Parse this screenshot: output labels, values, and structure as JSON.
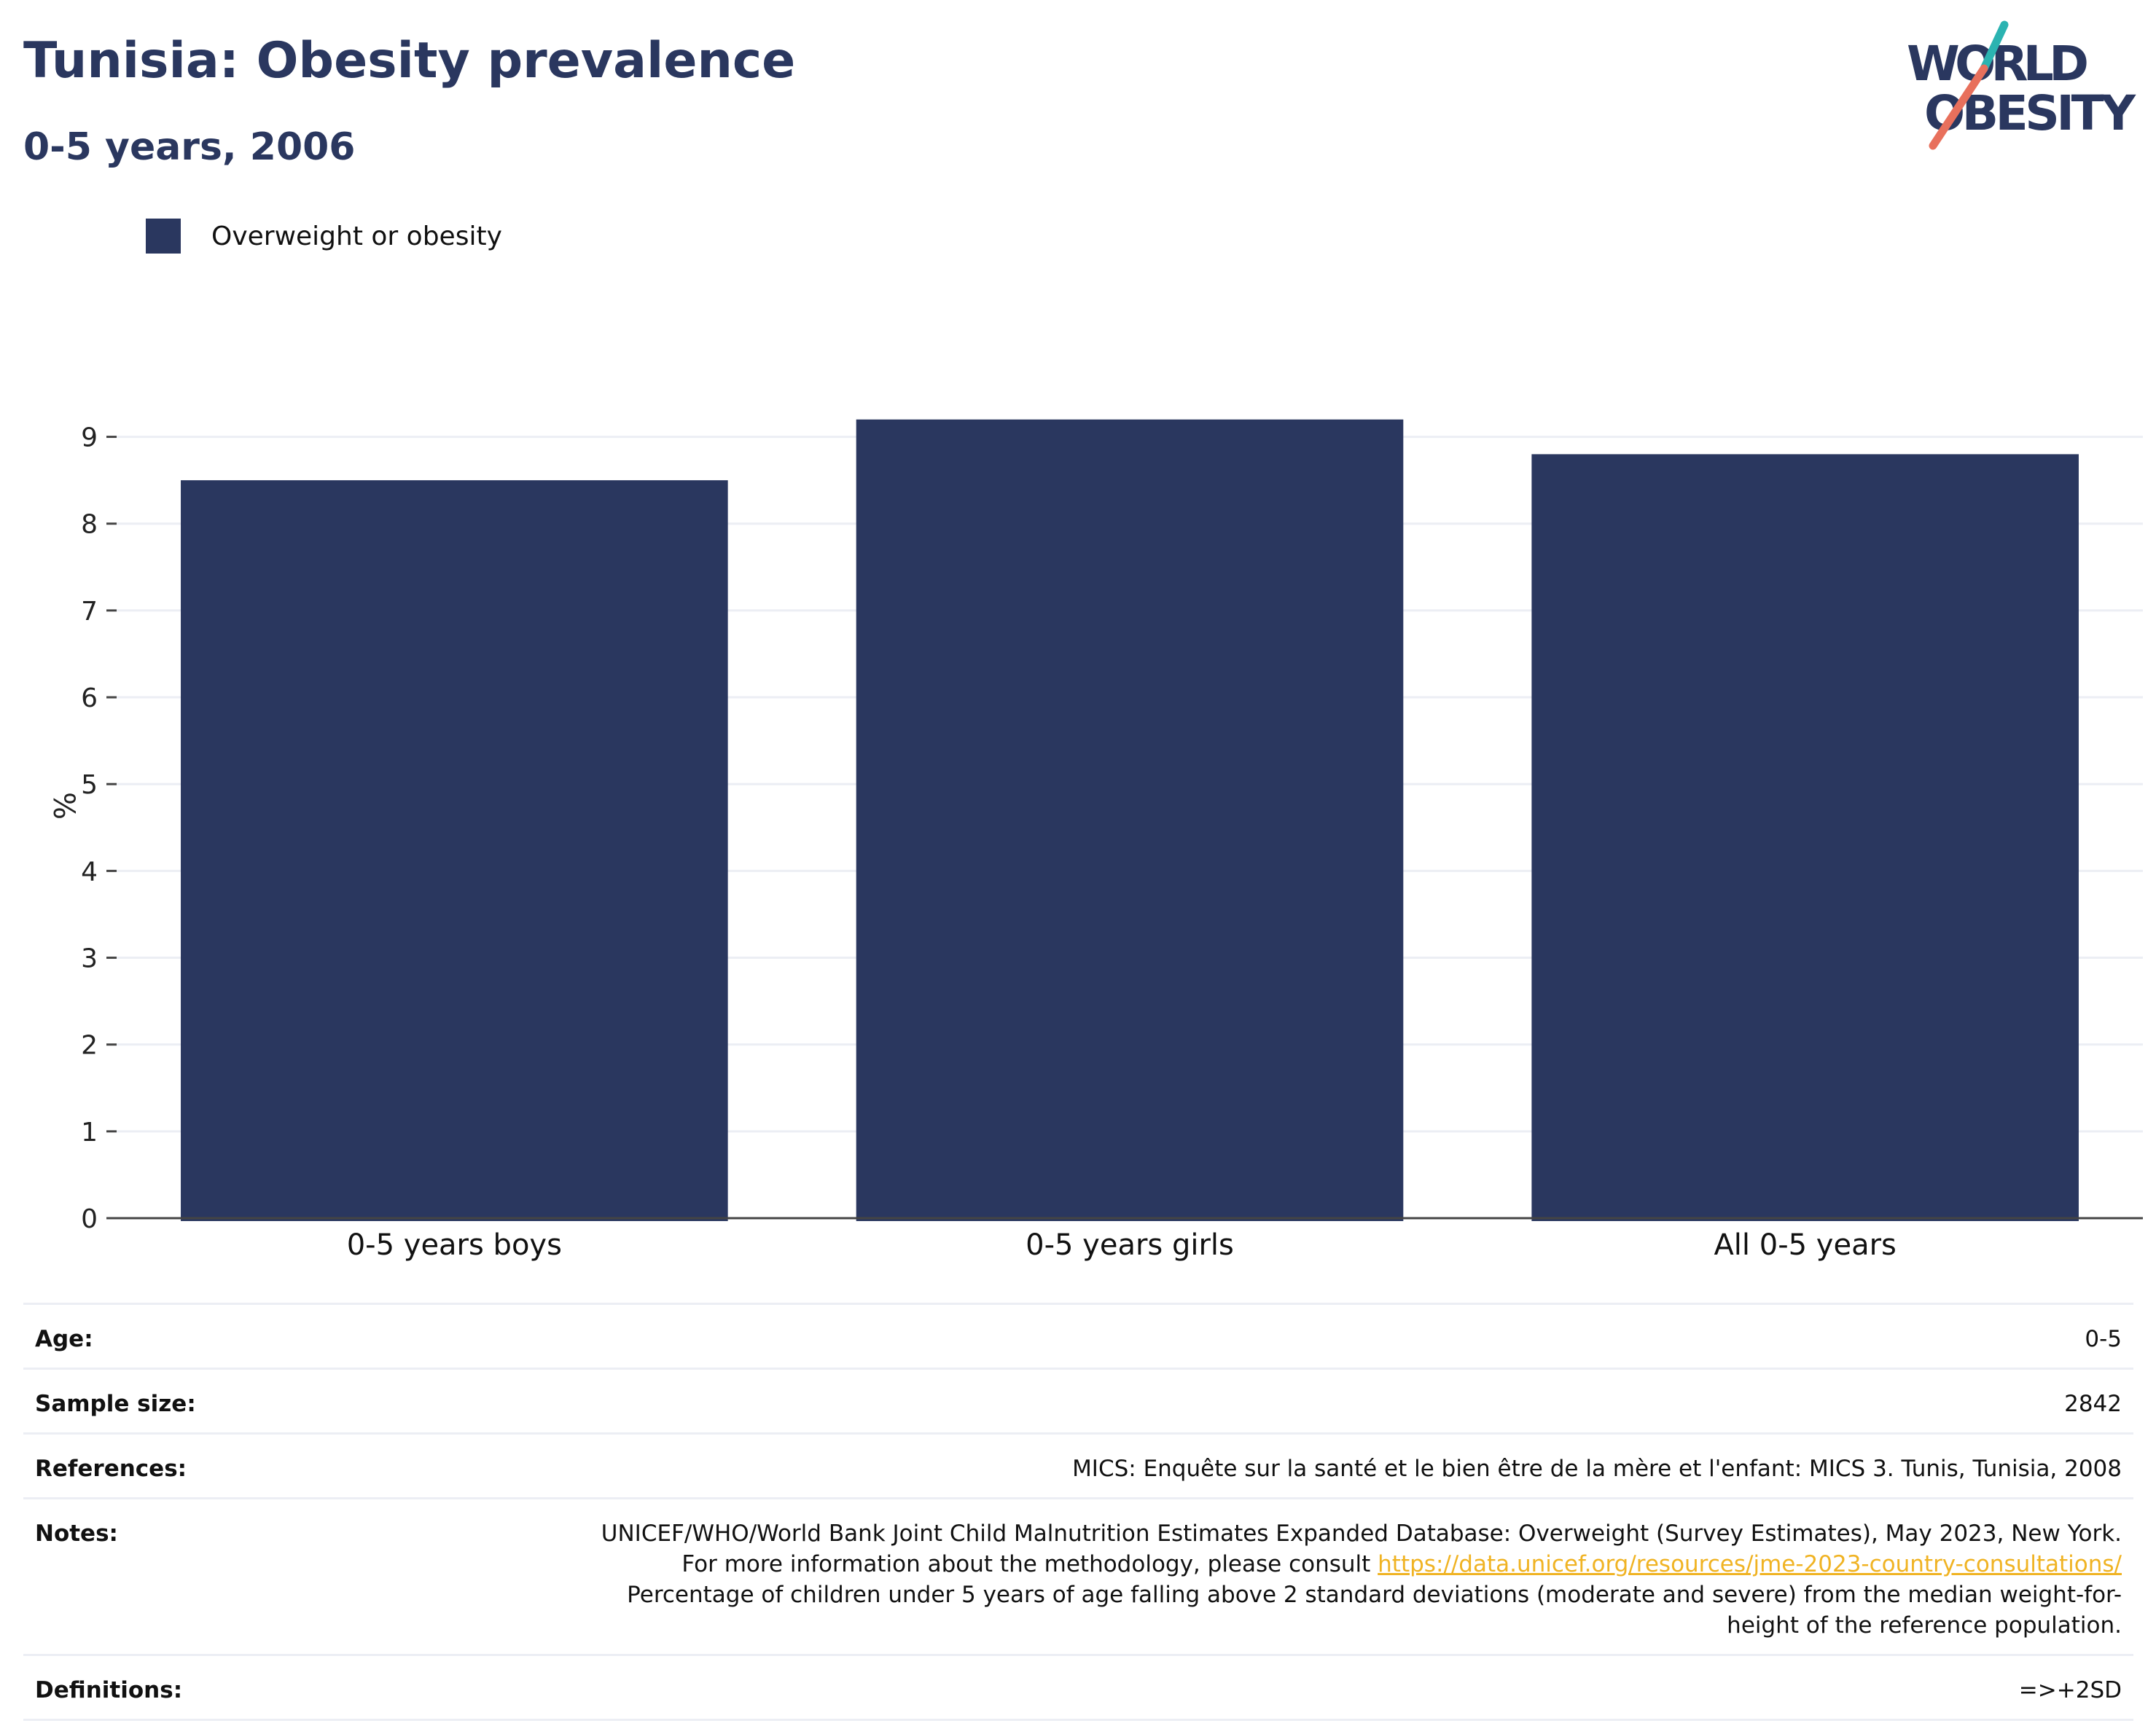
{
  "header": {
    "title": "Tunisia: Obesity prevalence",
    "subtitle": "0-5 years, 2006"
  },
  "logo": {
    "line1": "WORLD",
    "line2": "OBESITY",
    "text_color": "#2a375f",
    "slash_top_color": "#2bb3b1",
    "slash_bottom_color": "#e8705c"
  },
  "chart_data": {
    "type": "bar",
    "categories": [
      "0-5 years boys",
      "0-5 years girls",
      "All 0-5 years"
    ],
    "series": [
      {
        "name": "Overweight or obesity",
        "values": [
          8.5,
          9.2,
          8.8
        ],
        "color": "#2a375f"
      }
    ],
    "ylabel": "%",
    "xlabel": "",
    "ylim": [
      0,
      9.5
    ],
    "yticks": [
      0,
      1,
      2,
      3,
      4,
      5,
      6,
      7,
      8,
      9
    ],
    "grid": true,
    "legend": "top-left"
  },
  "meta": {
    "age": {
      "label": "Age:",
      "value": "0-5"
    },
    "sample_size": {
      "label": "Sample size:",
      "value": "2842"
    },
    "references": {
      "label": "References:",
      "value": "MICS: Enquête sur la santé et le bien être de la mère et l'enfant: MICS 3. Tunis, Tunisia, 2008"
    },
    "notes": {
      "label": "Notes:",
      "text_before": "UNICEF/WHO/World Bank Joint Child Malnutrition Estimates Expanded Database: Overweight (Survey Estimates), May 2023, New York. For more information about the methodology, please consult ",
      "link": "https://data.unicef.org/resources/jme-2023-country-consultations/",
      "text_after": " Percentage of children under 5 years of age falling above 2 standard deviations (moderate and severe) from the median weight-for-height of the reference population."
    },
    "definitions": {
      "label": "Definitions:",
      "value": "=>+2SD"
    }
  }
}
